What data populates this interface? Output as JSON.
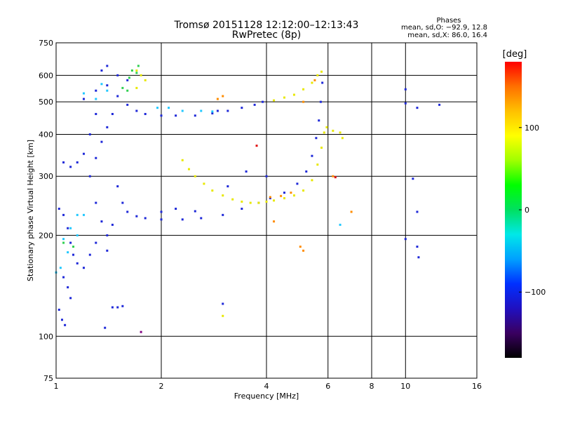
{
  "chart_data": {
    "type": "scatter",
    "title": "Tromsø 20151128 12:12:00–12:13:43",
    "subtitle": "RwPretec (8p)",
    "phase_box": {
      "title": "Phases",
      "line_o": "mean, sd,O: −92.9, 12.8",
      "line_x": "mean, sd,X:  86.0, 16.4"
    },
    "xlabel": "Frequency [MHz]",
    "ylabel": "Stationary phase Virtual Height [km]",
    "x_scale": "log",
    "y_scale": "log",
    "xlim": [
      1,
      16
    ],
    "ylim": [
      75,
      750
    ],
    "x_ticks": [
      1,
      2,
      4,
      6,
      8,
      10,
      16
    ],
    "x_tick_labels": [
      "1",
      "2",
      "4",
      "6",
      "8",
      "10",
      "16"
    ],
    "y_ticks": [
      75,
      100,
      200,
      300,
      400,
      500,
      600,
      750
    ],
    "y_tick_labels": [
      "75",
      "100",
      "200",
      "300",
      "400",
      "500",
      "600",
      "750"
    ],
    "grid": true,
    "colorbar": {
      "label": "[deg]",
      "range": [
        -180,
        180
      ],
      "ticks": [
        100,
        0,
        -100
      ],
      "tick_labels": [
        "100",
        "0",
        "−100"
      ],
      "colors": [
        "#000000",
        "#3a0060",
        "#2010c0",
        "#0030ff",
        "#00a0ff",
        "#00e8e8",
        "#00e060",
        "#00ff00",
        "#a0ff00",
        "#ffff00",
        "#ffc000",
        "#ff7000",
        "#ff0000"
      ]
    },
    "series": [
      {
        "color": "#1e28d8",
        "points": [
          [
            1.2,
            510
          ],
          [
            1.3,
            540
          ],
          [
            1.4,
            560
          ],
          [
            1.5,
            520
          ],
          [
            1.6,
            490
          ],
          [
            1.7,
            470
          ],
          [
            1.8,
            460
          ],
          [
            2.0,
            455
          ],
          [
            2.2,
            455
          ],
          [
            2.5,
            455
          ],
          [
            2.8,
            462
          ],
          [
            3.1,
            470
          ],
          [
            3.4,
            480
          ],
          [
            3.7,
            490
          ],
          [
            3.9,
            500
          ],
          [
            1.5,
            280
          ],
          [
            1.55,
            250
          ],
          [
            1.6,
            235
          ],
          [
            1.7,
            228
          ],
          [
            1.8,
            225
          ],
          [
            2.0,
            223
          ],
          [
            2.3,
            223
          ],
          [
            2.6,
            225
          ],
          [
            3.0,
            230
          ],
          [
            3.4,
            240
          ],
          [
            3.8,
            250
          ],
          [
            4.1,
            258
          ],
          [
            4.5,
            268
          ],
          [
            4.9,
            285
          ],
          [
            5.2,
            310
          ],
          [
            5.4,
            345
          ],
          [
            5.55,
            390
          ],
          [
            5.65,
            440
          ],
          [
            5.72,
            500
          ],
          [
            5.78,
            570
          ],
          [
            1.25,
            300
          ],
          [
            1.3,
            340
          ],
          [
            1.35,
            380
          ],
          [
            1.4,
            420
          ],
          [
            1.45,
            460
          ],
          [
            1.5,
            600
          ],
          [
            1.6,
            580
          ],
          [
            1.3,
            250
          ],
          [
            1.35,
            220
          ],
          [
            1.4,
            200
          ],
          [
            1.3,
            190
          ],
          [
            1.25,
            175
          ],
          [
            1.2,
            160
          ],
          [
            1.4,
            180
          ],
          [
            1.45,
            215
          ],
          [
            1.05,
            330
          ],
          [
            1.1,
            320
          ],
          [
            1.15,
            330
          ],
          [
            1.2,
            350
          ],
          [
            1.25,
            400
          ],
          [
            1.3,
            460
          ],
          [
            1.35,
            620
          ],
          [
            1.4,
            640
          ],
          [
            1.02,
            240
          ],
          [
            1.05,
            230
          ],
          [
            1.08,
            210
          ],
          [
            1.1,
            190
          ],
          [
            1.12,
            175
          ],
          [
            1.15,
            165
          ],
          [
            1.05,
            150
          ],
          [
            1.08,
            140
          ],
          [
            1.1,
            130
          ],
          [
            1.02,
            120
          ],
          [
            1.04,
            112
          ],
          [
            1.06,
            108
          ],
          [
            1.45,
            122
          ],
          [
            1.5,
            122
          ],
          [
            1.55,
            123
          ],
          [
            1.38,
            106
          ],
          [
            3.0,
            125
          ],
          [
            2.0,
            235
          ],
          [
            2.2,
            240
          ],
          [
            2.5,
            236
          ],
          [
            3.1,
            280
          ],
          [
            3.5,
            310
          ],
          [
            4.0,
            300
          ],
          [
            2.9,
            470
          ],
          [
            10,
            545
          ],
          [
            10,
            495
          ],
          [
            10.8,
            480
          ],
          [
            12.5,
            490
          ],
          [
            10.5,
            295
          ],
          [
            10.8,
            235
          ],
          [
            10,
            195
          ],
          [
            10.8,
            185
          ],
          [
            10.9,
            172
          ]
        ]
      },
      {
        "color": "#e8e800",
        "points": [
          [
            2.3,
            335
          ],
          [
            2.4,
            315
          ],
          [
            2.5,
            300
          ],
          [
            2.65,
            285
          ],
          [
            2.8,
            272
          ],
          [
            3.0,
            263
          ],
          [
            3.2,
            256
          ],
          [
            3.4,
            252
          ],
          [
            3.6,
            250
          ],
          [
            3.8,
            250
          ],
          [
            4.0,
            252
          ],
          [
            4.2,
            254
          ],
          [
            4.5,
            258
          ],
          [
            4.8,
            263
          ],
          [
            5.1,
            272
          ],
          [
            5.4,
            292
          ],
          [
            5.6,
            325
          ],
          [
            5.75,
            365
          ],
          [
            5.85,
            405
          ],
          [
            5.95,
            420
          ],
          [
            4.2,
            505
          ],
          [
            4.5,
            515
          ],
          [
            4.8,
            525
          ],
          [
            5.1,
            545
          ],
          [
            5.4,
            570
          ],
          [
            5.6,
            600
          ],
          [
            5.75,
            615
          ],
          [
            1.7,
            620
          ],
          [
            1.75,
            600
          ],
          [
            1.8,
            580
          ],
          [
            1.7,
            550
          ],
          [
            6.2,
            410
          ],
          [
            6.5,
            405
          ],
          [
            6.6,
            390
          ],
          [
            3.0,
            115
          ]
        ]
      },
      {
        "color": "#20c8ff",
        "points": [
          [
            1.15,
            230
          ],
          [
            1.1,
            210
          ],
          [
            1.05,
            195
          ],
          [
            1.08,
            178
          ],
          [
            1.15,
            200
          ],
          [
            1.2,
            230
          ],
          [
            1.03,
            160
          ],
          [
            1.0,
            155
          ],
          [
            1.3,
            510
          ],
          [
            1.2,
            530
          ],
          [
            1.35,
            565
          ],
          [
            1.4,
            540
          ],
          [
            1.95,
            480
          ],
          [
            2.1,
            480
          ],
          [
            2.3,
            470
          ],
          [
            2.6,
            470
          ],
          [
            2.8,
            468
          ],
          [
            6.5,
            215
          ]
        ]
      },
      {
        "color": "#30d050",
        "points": [
          [
            1.65,
            620
          ],
          [
            1.7,
            610
          ],
          [
            1.62,
            590
          ],
          [
            1.72,
            640
          ],
          [
            1.55,
            550
          ],
          [
            1.6,
            540
          ],
          [
            1.05,
            190
          ],
          [
            1.12,
            185
          ]
        ]
      },
      {
        "color": "#ff8c00",
        "points": [
          [
            4.1,
            260
          ],
          [
            4.4,
            262
          ],
          [
            4.7,
            268
          ],
          [
            5.1,
            500
          ],
          [
            5.5,
            580
          ],
          [
            6.2,
            300
          ],
          [
            7.0,
            235
          ],
          [
            5.0,
            185
          ],
          [
            3.0,
            520
          ],
          [
            2.9,
            510
          ],
          [
            4.2,
            220
          ],
          [
            5.1,
            180
          ]
        ]
      },
      {
        "color": "#e01010",
        "points": [
          [
            6.3,
            298
          ],
          [
            3.75,
            370
          ]
        ]
      },
      {
        "color": "#800080",
        "points": [
          [
            1.75,
            103
          ]
        ]
      }
    ]
  }
}
